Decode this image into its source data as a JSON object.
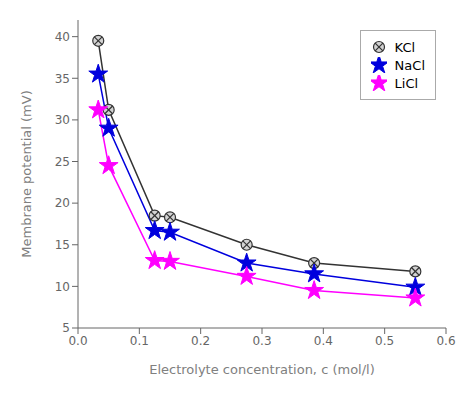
{
  "chart_data": {
    "type": "line",
    "xlabel": "Electrolyte concentration, c (mol/l)",
    "ylabel": "Membrane potential (mV)",
    "x": [
      0.033,
      0.05,
      0.125,
      0.15,
      0.275,
      0.385,
      0.55
    ],
    "series": [
      {
        "name": "KCl",
        "color": "#333333",
        "marker": "circle-cross",
        "values": [
          39.5,
          31.2,
          18.5,
          18.3,
          15.0,
          12.8,
          11.8
        ]
      },
      {
        "name": "NaCl",
        "color": "#0000dd",
        "marker": "star",
        "values": [
          35.5,
          29.0,
          16.7,
          16.5,
          12.8,
          11.5,
          9.9
        ]
      },
      {
        "name": "LiCl",
        "color": "#ff00ff",
        "marker": "star",
        "values": [
          31.2,
          24.5,
          13.1,
          13.0,
          11.2,
          9.5,
          8.6
        ]
      }
    ],
    "xlim": [
      0.0,
      0.6
    ],
    "ylim": [
      5,
      42
    ],
    "xticks": [
      {
        "value": 0.0,
        "label": "0.0"
      },
      0.1,
      0.2,
      0.3,
      0.4,
      0.5,
      0.6
    ],
    "yticks": [
      5,
      10,
      15,
      20,
      25,
      30,
      35,
      40
    ],
    "legend": "upper right",
    "grid": false
  }
}
